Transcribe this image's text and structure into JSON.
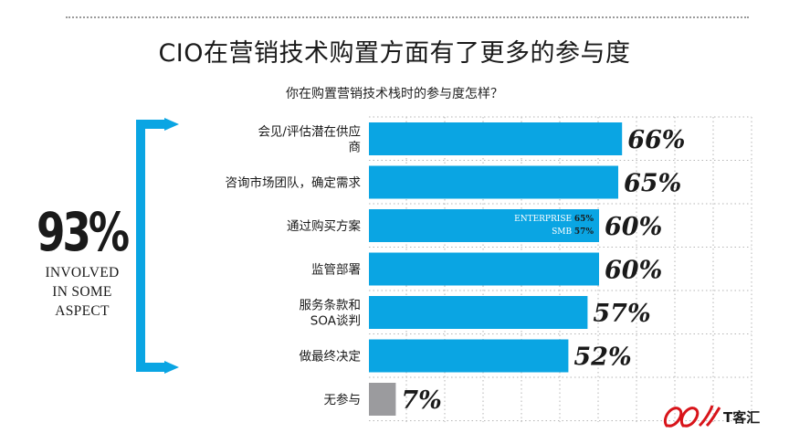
{
  "title": "CIO在营销技术购置方面有了更多的参与度",
  "subtitle": "你在购置营销技术栈时的参与度怎样？",
  "summary": {
    "percent": "93%",
    "label_lines": [
      "INVOLVED",
      "IN SOME",
      "ASPECT"
    ]
  },
  "colors": {
    "bar": "#0aa5e3",
    "bar_none": "#9b9b9e",
    "bracket": "#0aa5e3",
    "gridline": "#b5b5b5"
  },
  "chart_data": {
    "type": "bar",
    "orientation": "horizontal",
    "title": "CIO在营销技术购置方面有了更多的参与度",
    "subtitle": "你在购置营销技术栈时的参与度怎样？",
    "xlim": [
      0,
      100
    ],
    "grid": true,
    "categories": [
      [
        "会见/评估潜在供应",
        "商"
      ],
      [
        "咨询市场团队，确定需求"
      ],
      [
        "通过购买方案"
      ],
      [
        "监管部署"
      ],
      [
        "服务条款和",
        "SOA谈判"
      ],
      [
        "做最终决定"
      ],
      [
        "无参与"
      ]
    ],
    "values": [
      66,
      65,
      60,
      60,
      57,
      52,
      7
    ],
    "value_labels": [
      "66%",
      "65%",
      "60%",
      "60%",
      "57%",
      "52%",
      "7%"
    ],
    "annotations": [
      {
        "category_index": 2,
        "segment": "ENTERPRISE",
        "value": "65%"
      },
      {
        "category_index": 2,
        "segment": "SMB",
        "value": "57%"
      }
    ],
    "highlight_last_gray": true
  }
}
